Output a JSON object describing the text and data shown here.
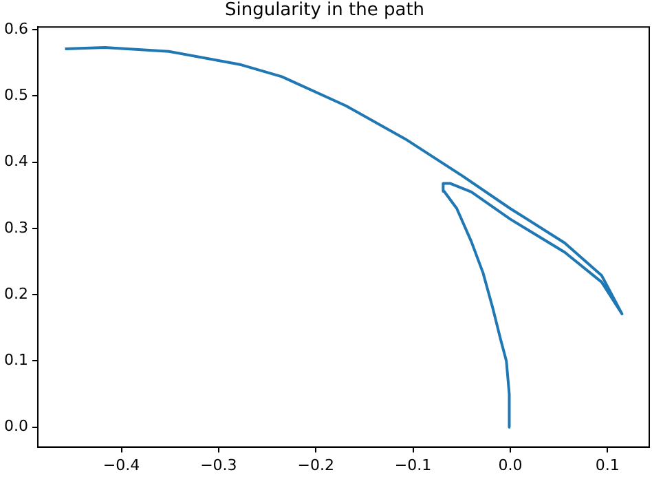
{
  "chart_data": {
    "type": "line",
    "title": "Singularity in the path",
    "xlim": [
      -0.486,
      0.143
    ],
    "ylim": [
      -0.03,
      0.604
    ],
    "xticks": [
      {
        "value": -0.4,
        "label": "−0.4"
      },
      {
        "value": -0.3,
        "label": "−0.3"
      },
      {
        "value": -0.2,
        "label": "−0.2"
      },
      {
        "value": -0.1,
        "label": "−0.1"
      },
      {
        "value": 0,
        "label": "0.0"
      },
      {
        "value": 0.1,
        "label": "0.1"
      }
    ],
    "yticks": [
      {
        "value": 0,
        "label": "0.0"
      },
      0.1,
      0.2,
      0.3,
      0.4,
      0.5,
      0.6
    ],
    "grid": false,
    "legend": false,
    "marker": "none",
    "line_style": "solid",
    "series": [
      {
        "color": "#1f77b4",
        "x": [
          0,
          -0.001,
          -0.004,
          -0.01,
          -0.018,
          -0.028,
          -0.04,
          -0.055,
          -0.068,
          -0.069,
          -0.062,
          -0.04,
          0,
          0.056,
          0.094,
          0.115,
          0.094,
          0.056,
          0,
          -0.05,
          -0.108,
          -0.169,
          -0.235,
          -0.277,
          -0.351,
          -0.417,
          -0.458
        ],
        "values": [
          0,
          0.05,
          0.1,
          0.133,
          0.18,
          0.233,
          0.28,
          0.33,
          0.356,
          0.368,
          0.368,
          0.355,
          0.314,
          0.264,
          0.219,
          0.171,
          0.229,
          0.278,
          0.33,
          0.38,
          0.435,
          0.485,
          0.529,
          0.547,
          0.567,
          0.573,
          0.571
        ]
      }
    ]
  }
}
